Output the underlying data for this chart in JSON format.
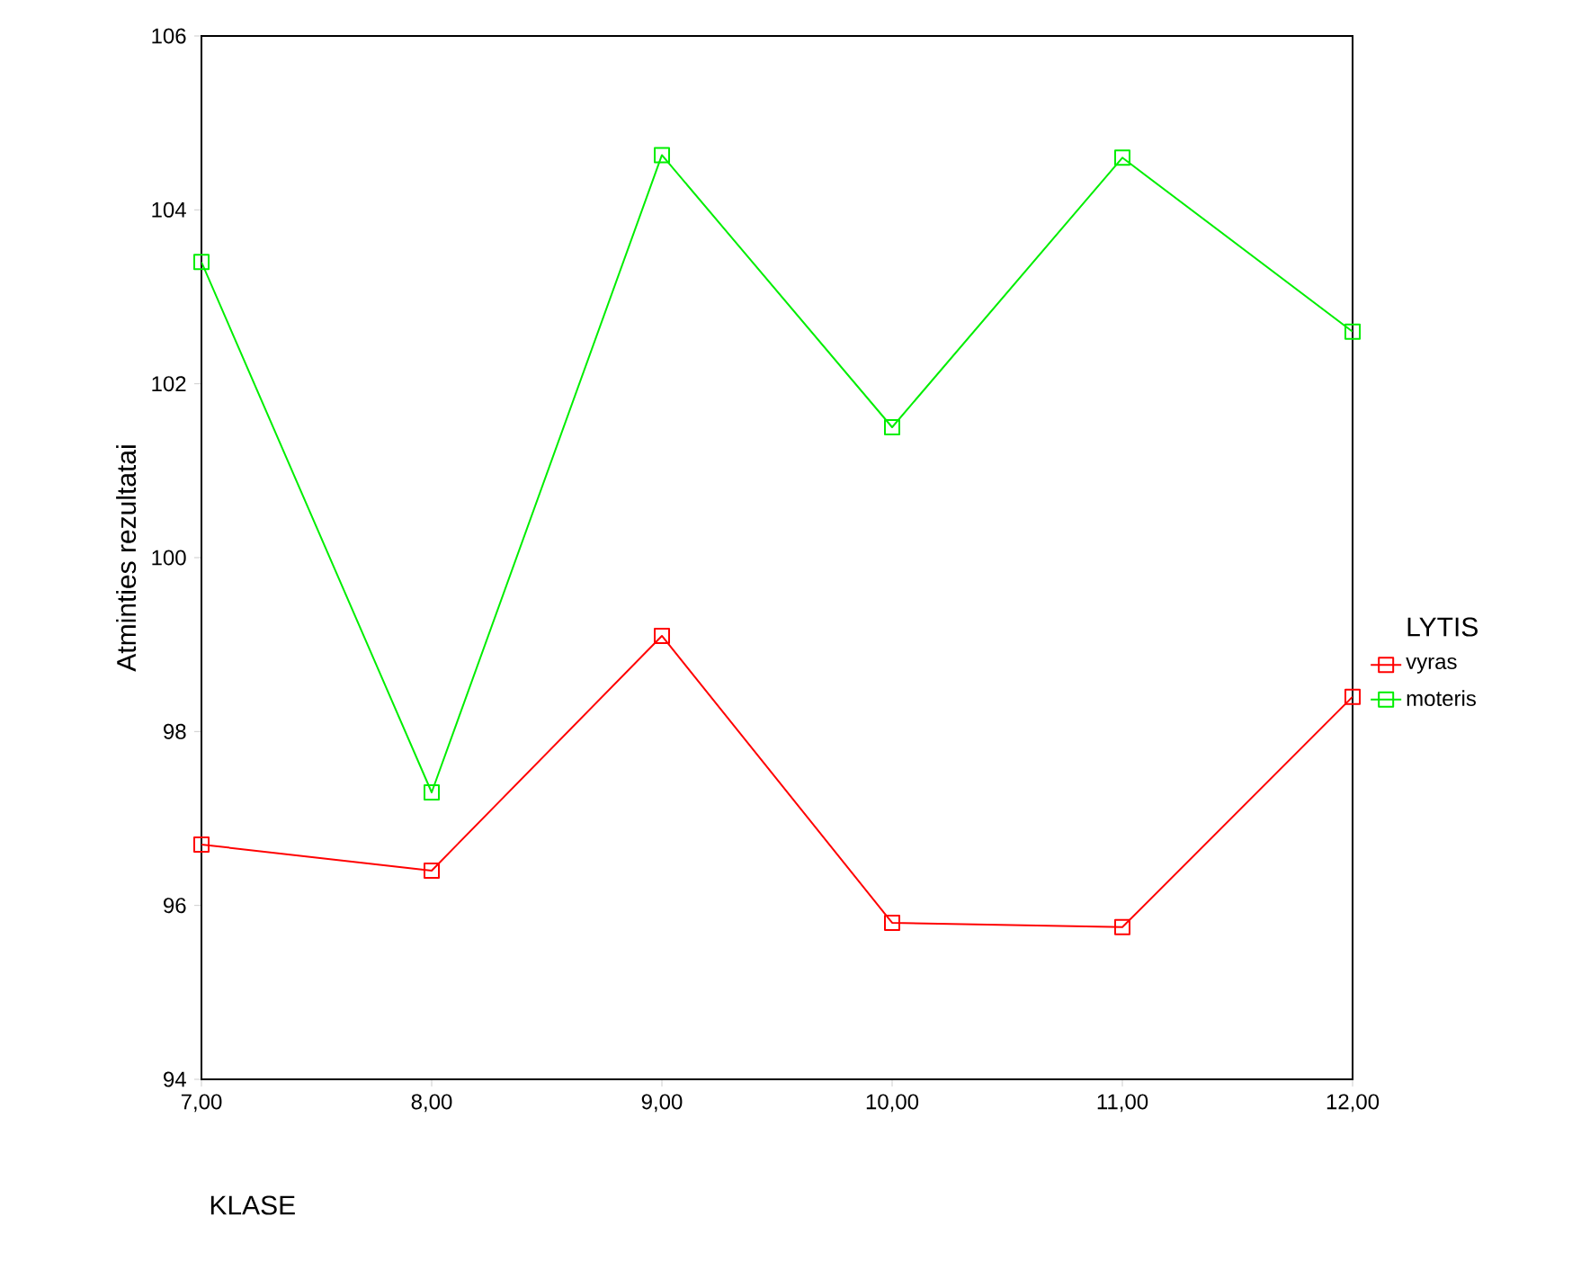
{
  "chart_data": {
    "type": "line",
    "xlabel": "KLASE",
    "ylabel": "Atminties rezultatai",
    "legend_title": "LYTIS",
    "x": [
      7,
      8,
      9,
      10,
      11,
      12
    ],
    "series": [
      {
        "name": "vyras",
        "color": "#ff0000",
        "values": [
          96.7,
          96.4,
          99.1,
          95.8,
          95.75,
          98.4
        ]
      },
      {
        "name": "moteris",
        "color": "#00ee00",
        "values": [
          103.4,
          97.3,
          104.63,
          101.5,
          104.6,
          102.6
        ]
      }
    ],
    "xlim": [
      7,
      12
    ],
    "ylim": [
      94,
      106
    ],
    "xticks": [
      {
        "value": 7,
        "label": "7,00"
      },
      {
        "value": 8,
        "label": "8,00"
      },
      {
        "value": 9,
        "label": "9,00"
      },
      {
        "value": 10,
        "label": "10,00"
      },
      {
        "value": 11,
        "label": "11,00"
      },
      {
        "value": 12,
        "label": "12,00"
      }
    ],
    "yticks": [
      94,
      96,
      98,
      100,
      102,
      104,
      106
    ],
    "marker": "square",
    "legend": "right",
    "grid": false
  }
}
